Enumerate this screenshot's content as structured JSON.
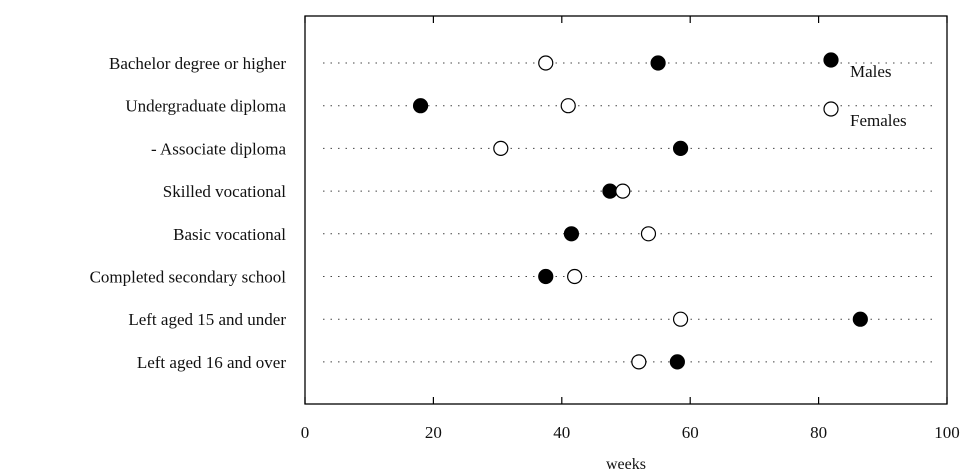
{
  "chart_data": {
    "type": "scatter",
    "title": "",
    "xlabel": "weeks",
    "ylabel": "",
    "xlim": [
      0,
      100
    ],
    "xticks": [
      "0",
      "20",
      "40",
      "60",
      "80",
      "100"
    ],
    "categories": [
      "Bachelor degree or higher",
      "Undergraduate diploma",
      "- Associate diploma",
      "Skilled vocational",
      "Basic vocational",
      "Completed secondary school",
      "Left aged 15 and under",
      "Left aged 16 and over"
    ],
    "series": [
      {
        "name": "Males",
        "marker": "filled-circle",
        "color": "#000000",
        "values": [
          55,
          18,
          58.5,
          47.5,
          41.5,
          37.5,
          86.5,
          58
        ]
      },
      {
        "name": "Females",
        "marker": "open-circle",
        "color": "#000000",
        "values": [
          37.5,
          41,
          30.5,
          49.5,
          53.5,
          42,
          58.5,
          52
        ]
      }
    ],
    "legend": {
      "placement": "top-right",
      "labels": [
        "Males",
        "Females"
      ]
    },
    "grid": false,
    "dotted_row_guides": true
  }
}
